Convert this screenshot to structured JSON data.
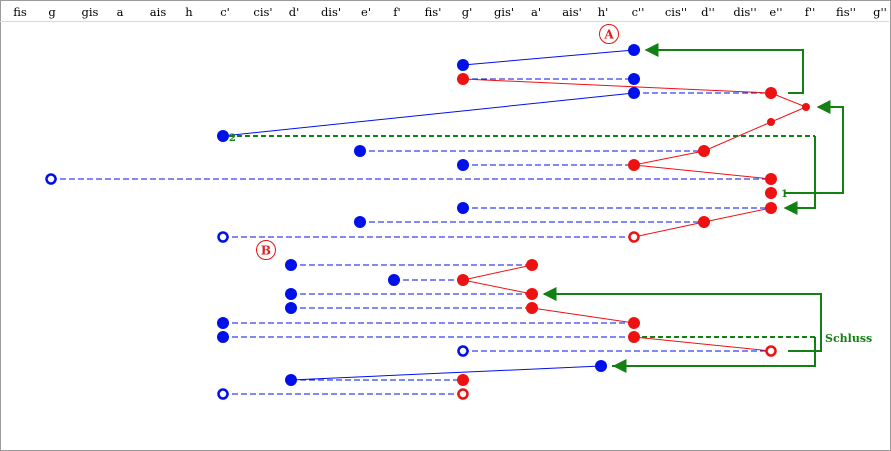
{
  "note_axis": [
    "fis",
    "g",
    "gis",
    "a",
    "ais",
    "h",
    "c'",
    "cis'",
    "d'",
    "dis'",
    "e'",
    "f'",
    "fis'",
    "g'",
    "gis'",
    "a'",
    "ais'",
    "h'",
    "c''",
    "cis''",
    "d''",
    "dis''",
    "e''",
    "f''",
    "fis''",
    "g''"
  ],
  "markers": {
    "a": "A",
    "b": "B"
  },
  "labels": {
    "one": "1",
    "two": "2",
    "schluss": "Schluss"
  },
  "colors": {
    "blue": "#0010e8",
    "red": "#ee1111",
    "green": "#138013",
    "grid": "#d8d8d8"
  }
}
